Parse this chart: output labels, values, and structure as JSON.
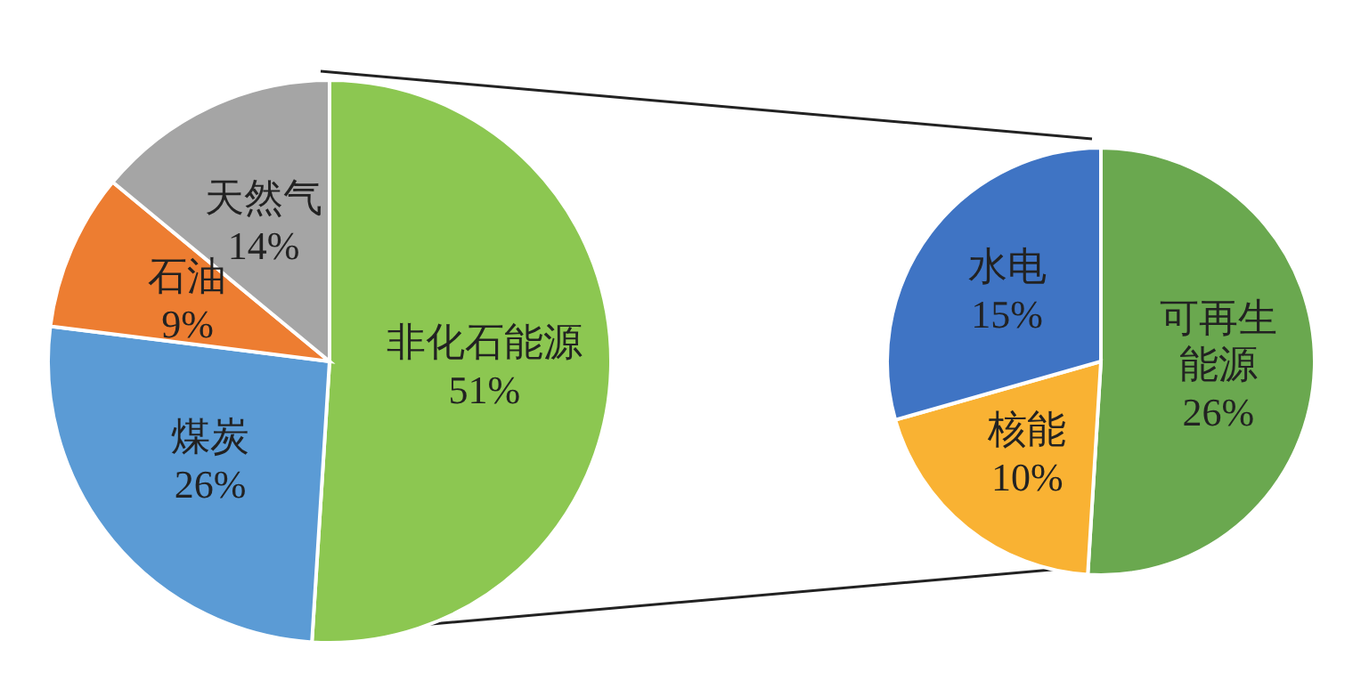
{
  "chart_data": [
    {
      "type": "pie",
      "categories": [
        "非化石能源",
        "煤炭",
        "石油",
        "天然气"
      ],
      "values": [
        51,
        26,
        9,
        14
      ],
      "value_labels": [
        "51%",
        "26%",
        "9%",
        "14%"
      ],
      "colors": [
        "#8cc751",
        "#5b9bd5",
        "#ed7d31",
        "#a5a5a5"
      ]
    },
    {
      "type": "pie",
      "categories": [
        "可再生能源",
        "核能",
        "水电"
      ],
      "values": [
        26,
        10,
        15
      ],
      "value_labels": [
        "26%",
        "10%",
        "15%"
      ],
      "colors": [
        "#6aa84f",
        "#f9b233",
        "#3f74c4"
      ]
    }
  ]
}
